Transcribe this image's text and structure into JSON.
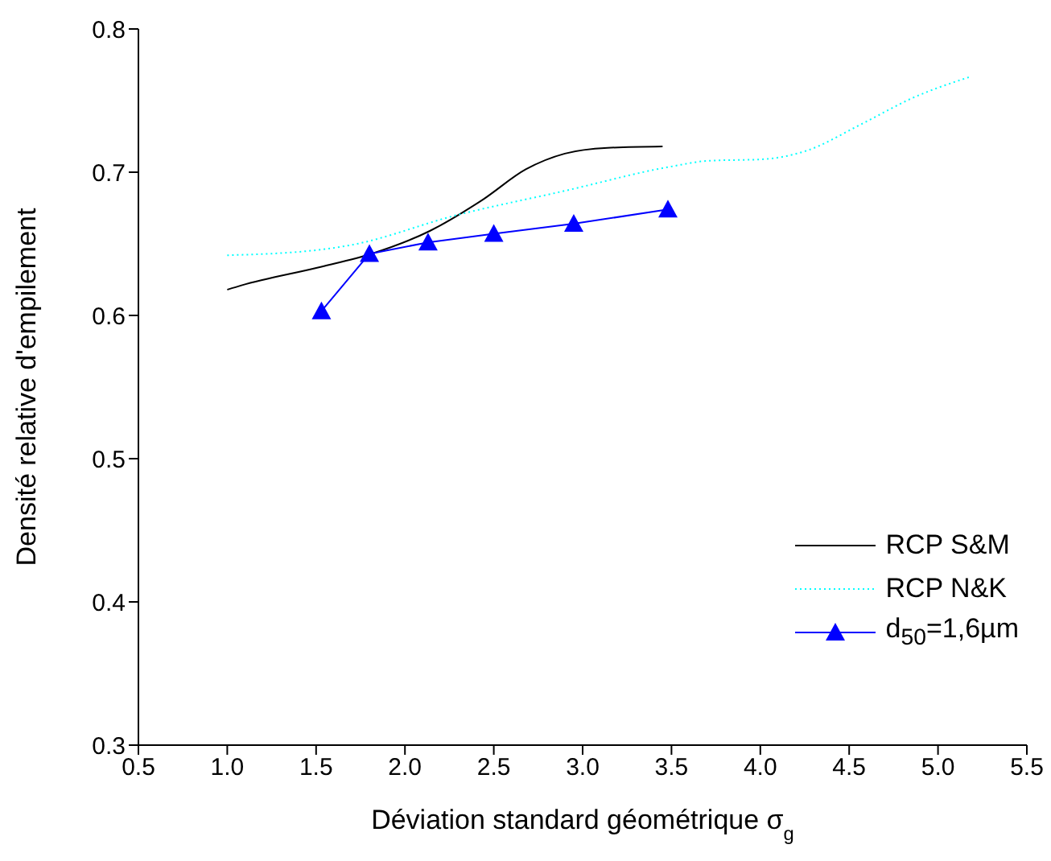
{
  "chart_data": {
    "type": "line",
    "xlabel": "Déviation standard géométrique σ$_{g}$",
    "ylabel": "Densité relative d'empilement",
    "xlim": [
      0.5,
      5.5
    ],
    "xticks": [
      {
        "value": 0.5,
        "label": "0.5"
      },
      {
        "value": 1,
        "label": "1.0"
      },
      {
        "value": 1.5,
        "label": "1.5"
      },
      {
        "value": 2,
        "label": "2.0"
      },
      {
        "value": 2.5,
        "label": "2.5"
      },
      {
        "value": 3,
        "label": "3.0"
      },
      {
        "value": 3.5,
        "label": "3.5"
      },
      {
        "value": 4,
        "label": "4.0"
      },
      {
        "value": 4.5,
        "label": "4.5"
      },
      {
        "value": 5,
        "label": "5.0"
      },
      {
        "value": 5.5,
        "label": "5.5"
      }
    ],
    "ylim": [
      0.3,
      0.8
    ],
    "yticks": [
      0.3,
      0.4,
      0.5,
      0.6,
      0.7,
      0.8
    ],
    "grid": false,
    "legend": "bottom right",
    "series": [
      {
        "name": "RCP S&M",
        "color": "#000000",
        "line_style": "solid",
        "marker": "none",
        "x": [
          1.0,
          1.08,
          1.53,
          1.81,
          2.14,
          2.44,
          2.68,
          2.9,
          3.14,
          3.45
        ],
        "values": [
          0.618,
          0.621,
          0.634,
          0.643,
          0.659,
          0.681,
          0.702,
          0.713,
          0.717,
          0.718
        ]
      },
      {
        "name": "RCP N&K",
        "color": "#00ffff",
        "line_style": "dotted",
        "marker": "none",
        "x": [
          1.0,
          1.53,
          1.69,
          2.29,
          2.9,
          3.5,
          3.71,
          4.01,
          4.26,
          4.56,
          4.86,
          5.19
        ],
        "values": [
          0.642,
          0.646,
          0.649,
          0.67,
          0.687,
          0.704,
          0.708,
          0.709,
          0.715,
          0.733,
          0.752,
          0.767
        ]
      },
      {
        "name": "d$_{50}$=1,6µm",
        "color": "#0000ff",
        "line_style": "solid",
        "marker": "triangle",
        "x": [
          1.53,
          1.8,
          2.13,
          2.5,
          2.95,
          3.48
        ],
        "values": [
          0.603,
          0.643,
          0.651,
          0.657,
          0.664,
          0.674
        ]
      }
    ]
  }
}
